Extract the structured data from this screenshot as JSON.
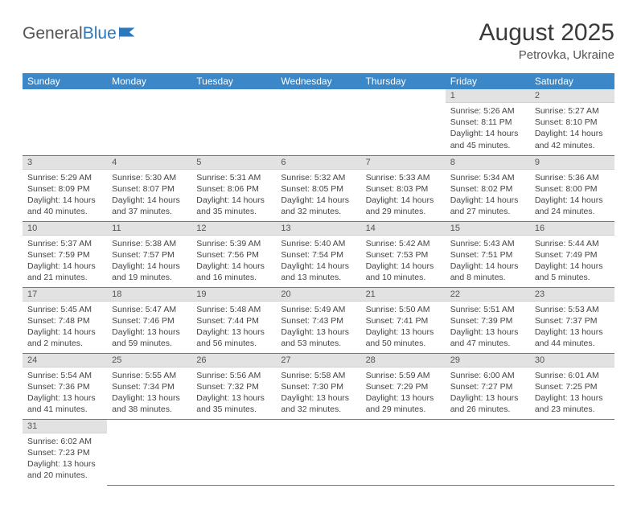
{
  "logo": {
    "text1": "General",
    "text2": "Blue"
  },
  "title": "August 2025",
  "location": "Petrovka, Ukraine",
  "colors": {
    "header_bg": "#3c87c7",
    "header_text": "#ffffff",
    "daynum_bg": "#e2e2e2",
    "row_border": "#3c87c7",
    "logo_accent": "#2b78bd"
  },
  "weekdays": [
    "Sunday",
    "Monday",
    "Tuesday",
    "Wednesday",
    "Thursday",
    "Friday",
    "Saturday"
  ],
  "first_weekday_index": 5,
  "days": [
    {
      "n": 1,
      "sr": "5:26 AM",
      "ss": "8:11 PM",
      "dl": "14 hours and 45 minutes."
    },
    {
      "n": 2,
      "sr": "5:27 AM",
      "ss": "8:10 PM",
      "dl": "14 hours and 42 minutes."
    },
    {
      "n": 3,
      "sr": "5:29 AM",
      "ss": "8:09 PM",
      "dl": "14 hours and 40 minutes."
    },
    {
      "n": 4,
      "sr": "5:30 AM",
      "ss": "8:07 PM",
      "dl": "14 hours and 37 minutes."
    },
    {
      "n": 5,
      "sr": "5:31 AM",
      "ss": "8:06 PM",
      "dl": "14 hours and 35 minutes."
    },
    {
      "n": 6,
      "sr": "5:32 AM",
      "ss": "8:05 PM",
      "dl": "14 hours and 32 minutes."
    },
    {
      "n": 7,
      "sr": "5:33 AM",
      "ss": "8:03 PM",
      "dl": "14 hours and 29 minutes."
    },
    {
      "n": 8,
      "sr": "5:34 AM",
      "ss": "8:02 PM",
      "dl": "14 hours and 27 minutes."
    },
    {
      "n": 9,
      "sr": "5:36 AM",
      "ss": "8:00 PM",
      "dl": "14 hours and 24 minutes."
    },
    {
      "n": 10,
      "sr": "5:37 AM",
      "ss": "7:59 PM",
      "dl": "14 hours and 21 minutes."
    },
    {
      "n": 11,
      "sr": "5:38 AM",
      "ss": "7:57 PM",
      "dl": "14 hours and 19 minutes."
    },
    {
      "n": 12,
      "sr": "5:39 AM",
      "ss": "7:56 PM",
      "dl": "14 hours and 16 minutes."
    },
    {
      "n": 13,
      "sr": "5:40 AM",
      "ss": "7:54 PM",
      "dl": "14 hours and 13 minutes."
    },
    {
      "n": 14,
      "sr": "5:42 AM",
      "ss": "7:53 PM",
      "dl": "14 hours and 10 minutes."
    },
    {
      "n": 15,
      "sr": "5:43 AM",
      "ss": "7:51 PM",
      "dl": "14 hours and 8 minutes."
    },
    {
      "n": 16,
      "sr": "5:44 AM",
      "ss": "7:49 PM",
      "dl": "14 hours and 5 minutes."
    },
    {
      "n": 17,
      "sr": "5:45 AM",
      "ss": "7:48 PM",
      "dl": "14 hours and 2 minutes."
    },
    {
      "n": 18,
      "sr": "5:47 AM",
      "ss": "7:46 PM",
      "dl": "13 hours and 59 minutes."
    },
    {
      "n": 19,
      "sr": "5:48 AM",
      "ss": "7:44 PM",
      "dl": "13 hours and 56 minutes."
    },
    {
      "n": 20,
      "sr": "5:49 AM",
      "ss": "7:43 PM",
      "dl": "13 hours and 53 minutes."
    },
    {
      "n": 21,
      "sr": "5:50 AM",
      "ss": "7:41 PM",
      "dl": "13 hours and 50 minutes."
    },
    {
      "n": 22,
      "sr": "5:51 AM",
      "ss": "7:39 PM",
      "dl": "13 hours and 47 minutes."
    },
    {
      "n": 23,
      "sr": "5:53 AM",
      "ss": "7:37 PM",
      "dl": "13 hours and 44 minutes."
    },
    {
      "n": 24,
      "sr": "5:54 AM",
      "ss": "7:36 PM",
      "dl": "13 hours and 41 minutes."
    },
    {
      "n": 25,
      "sr": "5:55 AM",
      "ss": "7:34 PM",
      "dl": "13 hours and 38 minutes."
    },
    {
      "n": 26,
      "sr": "5:56 AM",
      "ss": "7:32 PM",
      "dl": "13 hours and 35 minutes."
    },
    {
      "n": 27,
      "sr": "5:58 AM",
      "ss": "7:30 PM",
      "dl": "13 hours and 32 minutes."
    },
    {
      "n": 28,
      "sr": "5:59 AM",
      "ss": "7:29 PM",
      "dl": "13 hours and 29 minutes."
    },
    {
      "n": 29,
      "sr": "6:00 AM",
      "ss": "7:27 PM",
      "dl": "13 hours and 26 minutes."
    },
    {
      "n": 30,
      "sr": "6:01 AM",
      "ss": "7:25 PM",
      "dl": "13 hours and 23 minutes."
    },
    {
      "n": 31,
      "sr": "6:02 AM",
      "ss": "7:23 PM",
      "dl": "13 hours and 20 minutes."
    }
  ],
  "labels": {
    "sunrise": "Sunrise:",
    "sunset": "Sunset:",
    "daylight": "Daylight:"
  }
}
